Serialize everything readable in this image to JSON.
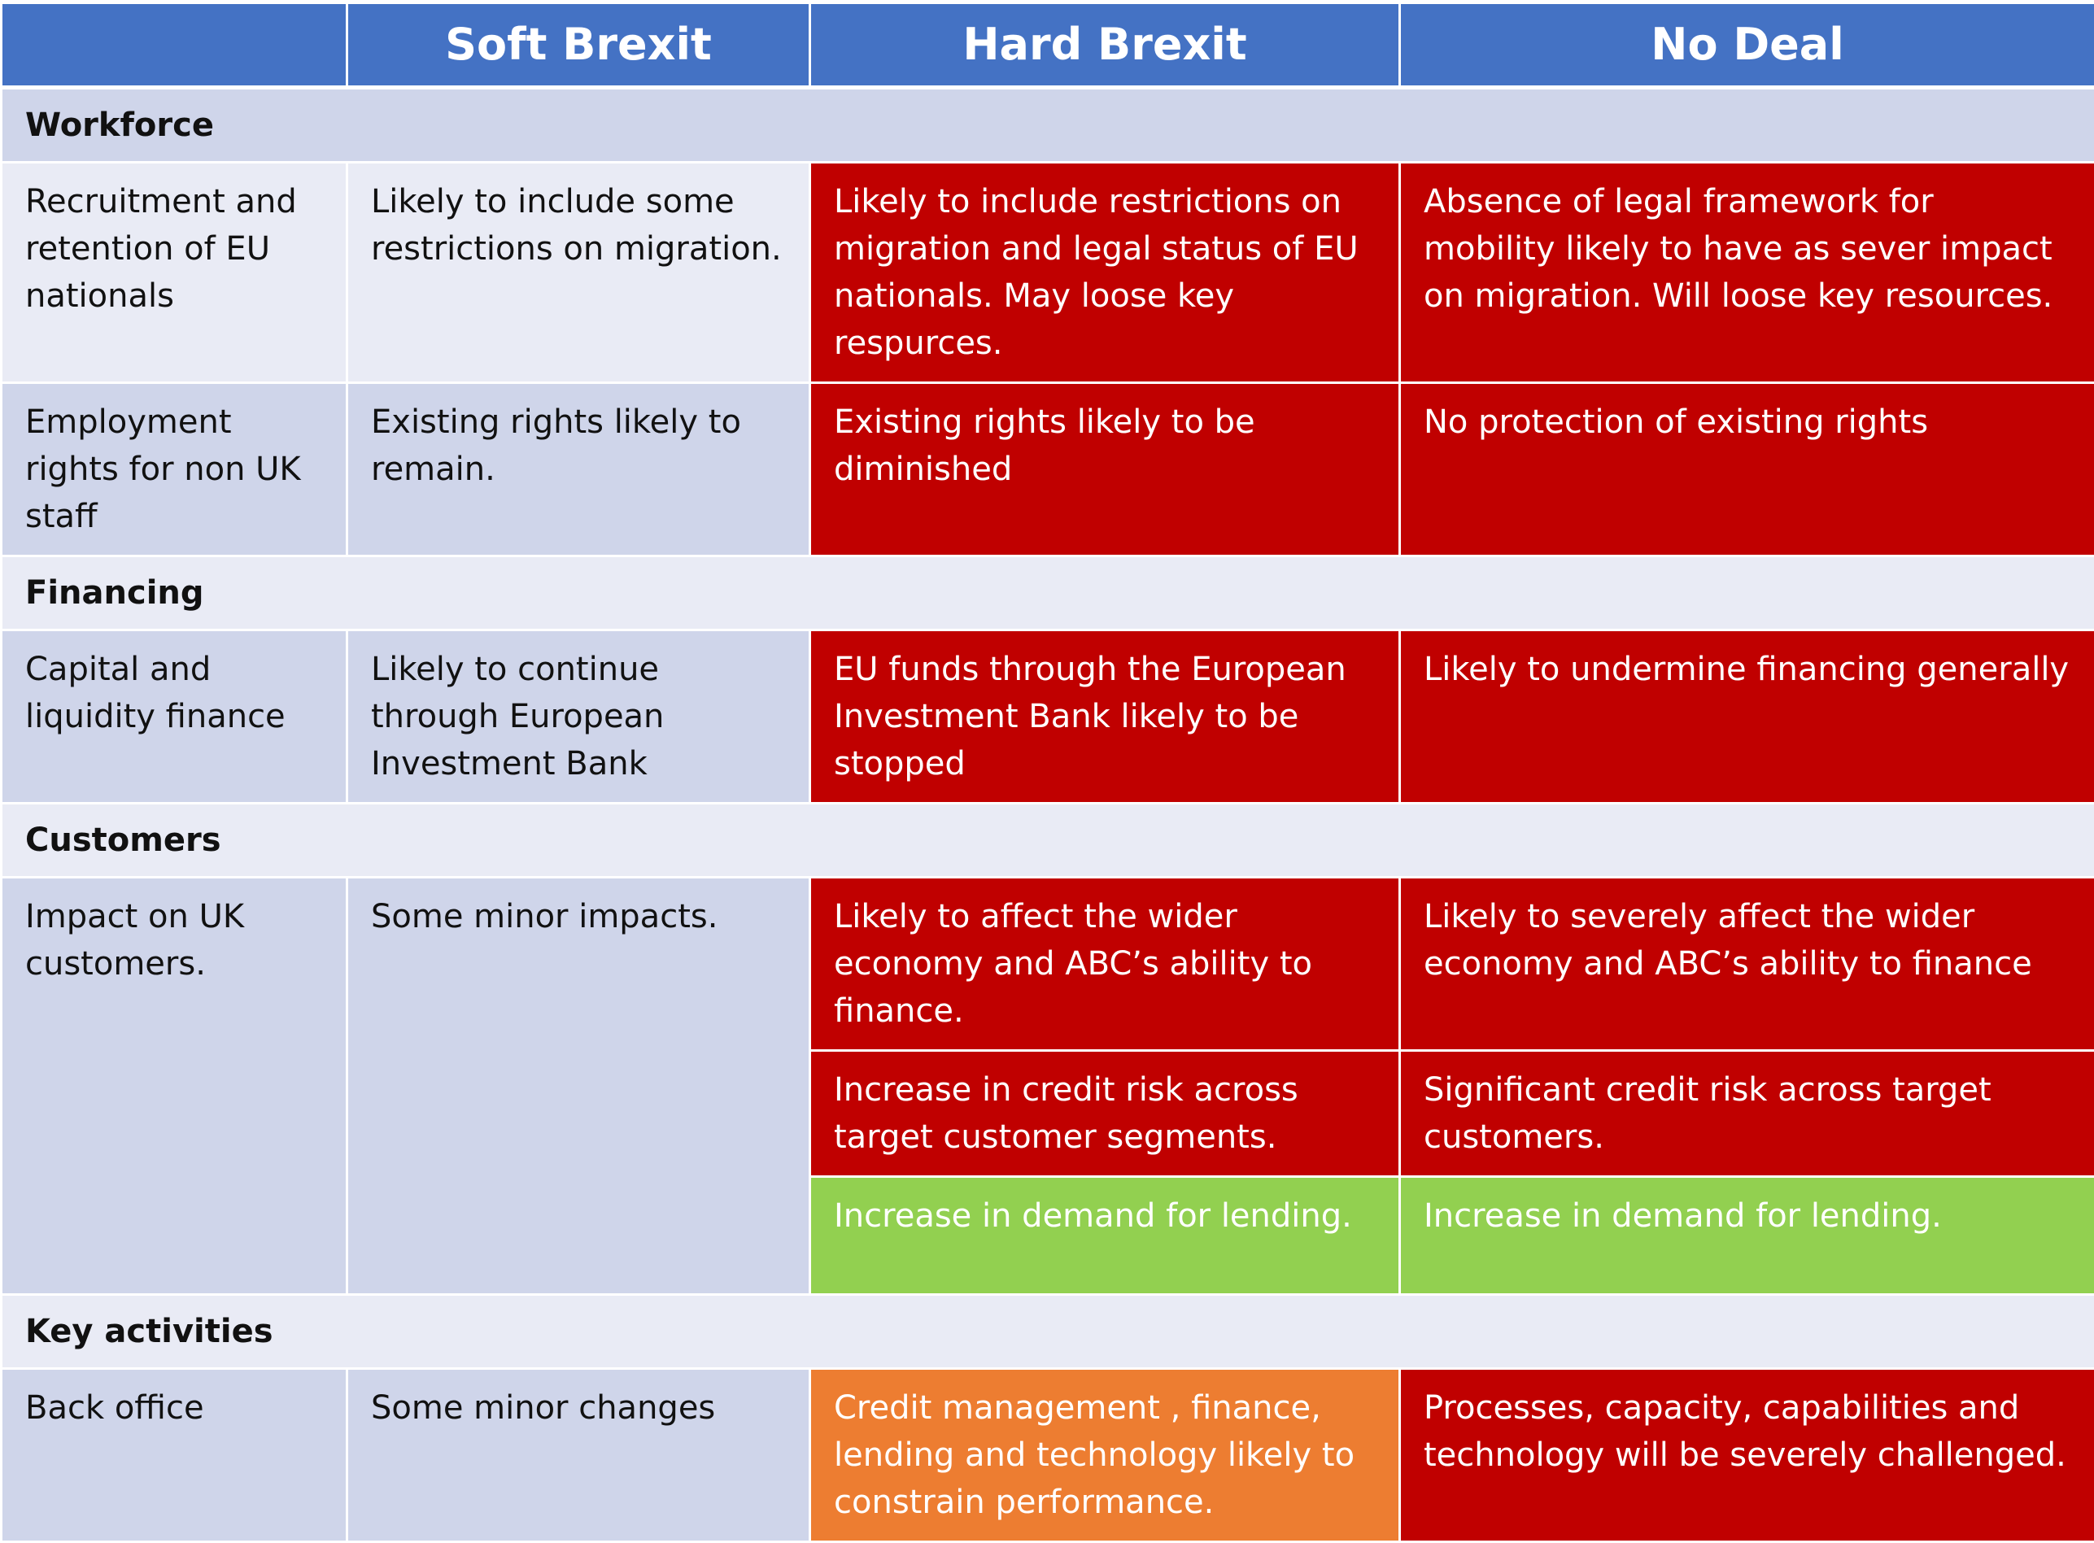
{
  "header": {
    "blank": "",
    "columns": [
      "Soft Brexit",
      "Hard Brexit",
      "No Deal"
    ]
  },
  "sections": {
    "workforce": {
      "title": "Workforce",
      "recruitment": {
        "label": "Recruitment and retention of EU nationals",
        "soft": "Likely to include some restrictions on migration.",
        "hard": "Likely to include restrictions on migration and legal status of EU nationals. May loose key respurces.",
        "nodeal": "Absence of legal framework for mobility likely to have as sever impact on migration. Will loose key resources."
      },
      "employment": {
        "label": "Employment rights for non UK staff",
        "soft": "Existing rights likely to remain.",
        "hard": "Existing rights likely to be diminished",
        "nodeal": "No protection of existing rights"
      }
    },
    "financing": {
      "title": "Financing",
      "capital": {
        "label": "Capital and liquidity finance",
        "soft": "Likely to continue through European Investment Bank",
        "hard": "EU funds through the European Investment Bank likely to be stopped",
        "nodeal": "Likely to undermine financing generally"
      }
    },
    "customers": {
      "title": "Customers",
      "impact": {
        "label": "Impact on UK customers.",
        "soft": "Some minor impacts.",
        "hard_1": "Likely to affect the wider economy and ABC’s ability to finance.",
        "nodeal_1": "Likely to severely affect the wider economy and ABC’s ability to finance",
        "hard_2": "Increase in credit risk across target customer segments.",
        "nodeal_2": "Significant credit risk across target customers.",
        "hard_3": "Increase  in demand for lending.",
        "nodeal_3": "Increase  in demand for lending."
      }
    },
    "key_activities": {
      "title": "Key activities",
      "back_office": {
        "label": "Back office",
        "soft": "Some minor changes",
        "hard": "Credit management , finance, lending and technology  likely to constrain performance.",
        "nodeal": "Processes, capacity, capabilities and technology will be severely challenged."
      }
    }
  },
  "colors": {
    "header": "#4472c4",
    "section_band": "#e9ebf5",
    "row_band": "#cfd5ea",
    "severe": "#c00000",
    "moderate": "#ed7d31",
    "positive": "#92d050"
  }
}
